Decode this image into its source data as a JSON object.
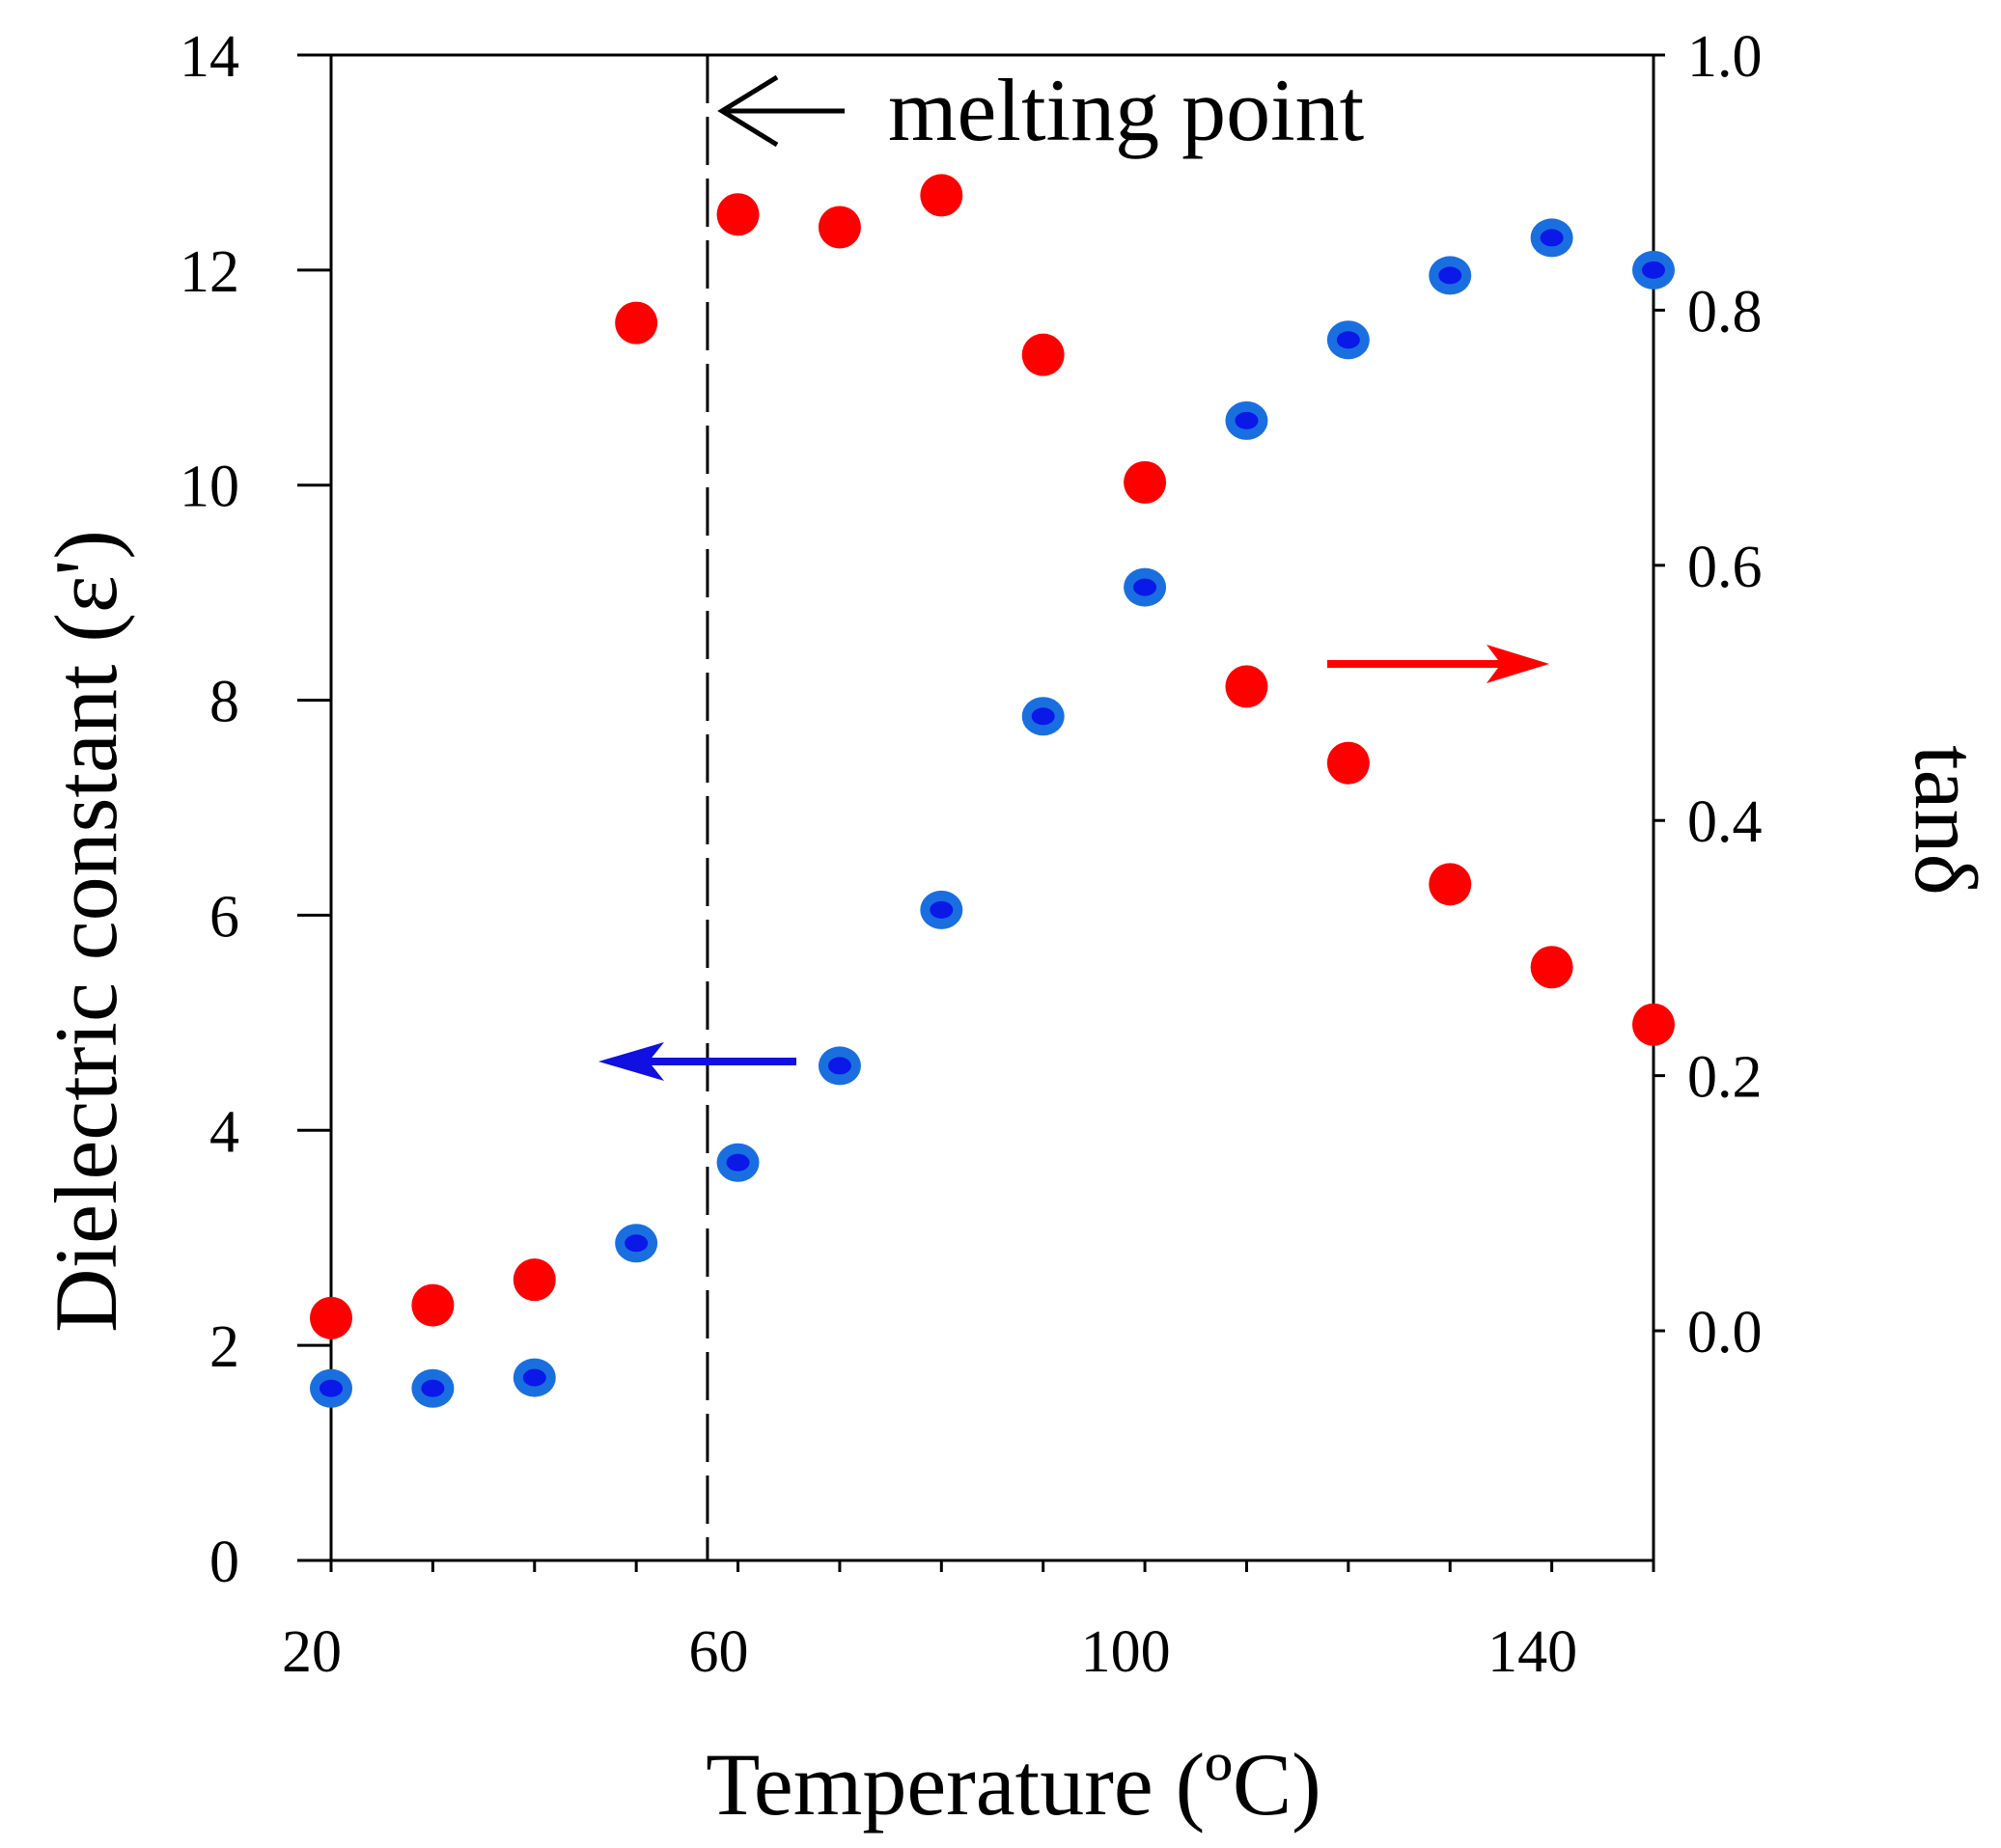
{
  "chart_data": {
    "type": "scatter",
    "title": "",
    "xlabel": "Temperature (ºC)",
    "ylabel_left": "Dielectric constant (ε')",
    "ylabel_right": "tanδ",
    "xlim": [
      20,
      150
    ],
    "ylim_left": [
      0,
      14
    ],
    "ylim_right": [
      -0.18,
      1.0
    ],
    "x_ticks": [
      20,
      60,
      100,
      140
    ],
    "y_left_ticks": [
      0,
      2,
      4,
      6,
      8,
      10,
      12,
      14
    ],
    "y_right_ticks": [
      0.0,
      0.2,
      0.4,
      0.6,
      0.8,
      1.0
    ],
    "x_tick_labels": [
      "20",
      "60",
      "100",
      "140"
    ],
    "y_left_tick_labels": [
      "0",
      "2",
      "4",
      "6",
      "8",
      "10",
      "12",
      "14"
    ],
    "y_right_tick_labels": [
      "0.0",
      "0.2",
      "0.4",
      "0.6",
      "0.8",
      "1.0"
    ],
    "grid": false,
    "series": [
      {
        "name": "Dielectric constant (ε')",
        "axis": "left",
        "color": "#1a6fe0",
        "inner_color": "#0a18e8",
        "x": [
          20,
          30,
          40,
          50,
          60,
          70,
          80,
          90,
          100,
          110,
          120,
          130,
          140,
          150
        ],
        "y": [
          1.6,
          1.6,
          1.7,
          2.95,
          3.7,
          4.6,
          6.05,
          7.85,
          9.05,
          10.6,
          11.35,
          11.95,
          12.3,
          12.0
        ]
      },
      {
        "name": "tanδ",
        "axis": "right",
        "color": "#ff0000",
        "x": [
          20,
          30,
          40,
          50,
          60,
          70,
          80,
          90,
          100,
          110,
          120,
          130,
          140,
          150
        ],
        "y": [
          0.01,
          0.02,
          0.04,
          0.79,
          0.875,
          0.865,
          0.89,
          0.765,
          0.665,
          0.505,
          0.445,
          0.35,
          0.285,
          0.24
        ]
      }
    ],
    "annotations": {
      "melting_point_label": "melting point",
      "melting_point_x": 57
    }
  }
}
